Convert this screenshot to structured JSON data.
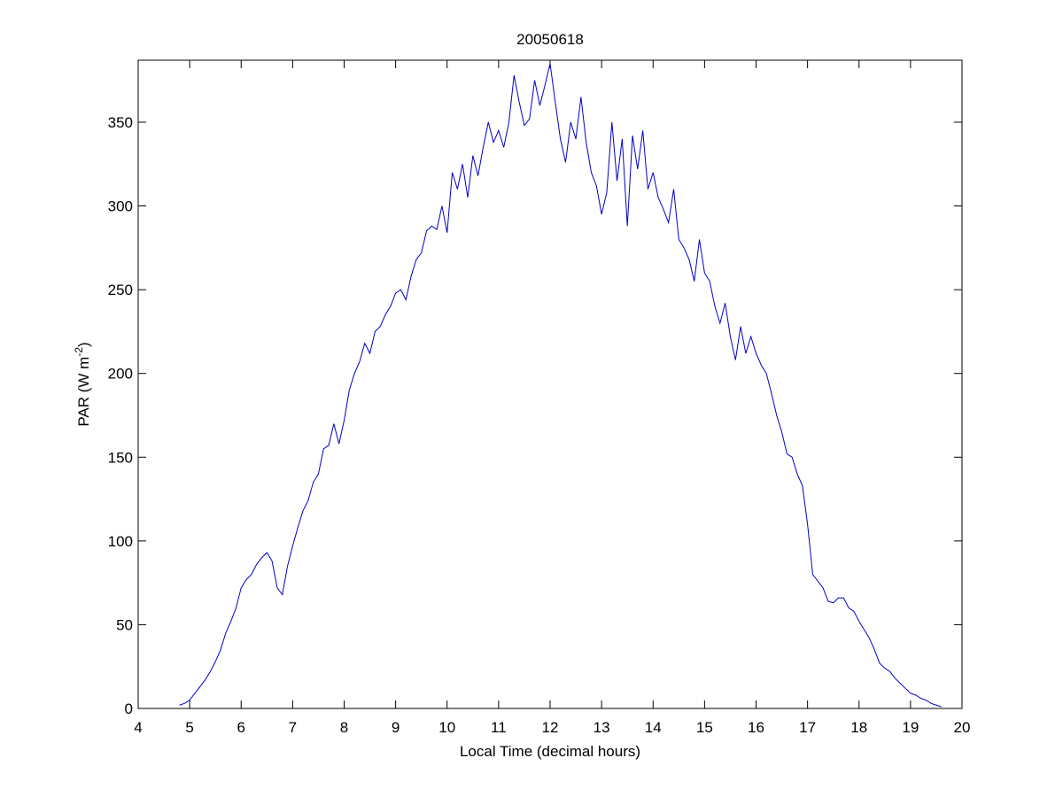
{
  "chart_data": {
    "type": "line",
    "title": "20050618",
    "x_label": "Local Time (decimal hours)",
    "y_label": [
      "PAR (W m",
      "-2",
      ")"
    ],
    "xlim": [
      4,
      20
    ],
    "xticks": [
      4,
      5,
      6,
      7,
      8,
      9,
      10,
      11,
      12,
      13,
      14,
      15,
      16,
      17,
      18,
      19,
      20
    ],
    "ylim": [
      0,
      387
    ],
    "yticks": [
      0,
      50,
      100,
      150,
      200,
      250,
      300,
      350
    ],
    "grid": false,
    "x": [
      4.8,
      4.9,
      5.0,
      5.1,
      5.2,
      5.3,
      5.4,
      5.5,
      5.6,
      5.7,
      5.8,
      5.9,
      6.0,
      6.1,
      6.2,
      6.3,
      6.4,
      6.5,
      6.6,
      6.7,
      6.8,
      6.9,
      7.0,
      7.1,
      7.2,
      7.3,
      7.4,
      7.5,
      7.6,
      7.7,
      7.8,
      7.9,
      8.0,
      8.1,
      8.2,
      8.3,
      8.4,
      8.5,
      8.6,
      8.7,
      8.8,
      8.9,
      9.0,
      9.1,
      9.2,
      9.3,
      9.4,
      9.5,
      9.6,
      9.7,
      9.8,
      9.9,
      10.0,
      10.1,
      10.2,
      10.3,
      10.4,
      10.5,
      10.6,
      10.7,
      10.8,
      10.9,
      11.0,
      11.1,
      11.2,
      11.3,
      11.4,
      11.5,
      11.6,
      11.7,
      11.8,
      11.9,
      12.0,
      12.1,
      12.2,
      12.3,
      12.4,
      12.5,
      12.6,
      12.7,
      12.8,
      12.9,
      13.0,
      13.1,
      13.2,
      13.3,
      13.4,
      13.5,
      13.6,
      13.7,
      13.8,
      13.9,
      14.0,
      14.1,
      14.2,
      14.3,
      14.4,
      14.5,
      14.6,
      14.7,
      14.8,
      14.9,
      15.0,
      15.1,
      15.2,
      15.3,
      15.4,
      15.5,
      15.6,
      15.7,
      15.8,
      15.9,
      16.0,
      16.1,
      16.2,
      16.3,
      16.4,
      16.5,
      16.6,
      16.7,
      16.8,
      16.9,
      17.0,
      17.1,
      17.2,
      17.3,
      17.4,
      17.5,
      17.6,
      17.7,
      17.8,
      17.9,
      18.0,
      18.1,
      18.2,
      18.3,
      18.4,
      18.5,
      18.6,
      18.7,
      18.8,
      18.9,
      19.0,
      19.1,
      19.2,
      19.3,
      19.4,
      19.5,
      19.6
    ],
    "series": [
      {
        "color": "#0000c8",
        "values": [
          2,
          3,
          5,
          9,
          13,
          17,
          22,
          28,
          35,
          45,
          52,
          60,
          72,
          77,
          80,
          86,
          90,
          93,
          88,
          72,
          68,
          85,
          97,
          108,
          118,
          124,
          135,
          140,
          155,
          157,
          170,
          158,
          172,
          190,
          200,
          207,
          218,
          212,
          225,
          228,
          235,
          240,
          248,
          250,
          244,
          258,
          268,
          272,
          285,
          288,
          286,
          300,
          284,
          320,
          310,
          325,
          305,
          330,
          318,
          335,
          350,
          338,
          345,
          335,
          350,
          378,
          362,
          348,
          352,
          375,
          360,
          372,
          385,
          362,
          340,
          326,
          350,
          340,
          365,
          338,
          320,
          312,
          295,
          308,
          350,
          315,
          340,
          288,
          342,
          322,
          345,
          310,
          320,
          305,
          298,
          290,
          310,
          280,
          275,
          268,
          255,
          280,
          260,
          255,
          240,
          230,
          242,
          222,
          208,
          228,
          212,
          222,
          212,
          205,
          200,
          188,
          175,
          165,
          152,
          150,
          140,
          133,
          110,
          80,
          76,
          72,
          64,
          63,
          66,
          66,
          60,
          58,
          52,
          47,
          42,
          35,
          27,
          24,
          22,
          18,
          15,
          12,
          9,
          8,
          6,
          5,
          3,
          2,
          1
        ]
      }
    ]
  }
}
